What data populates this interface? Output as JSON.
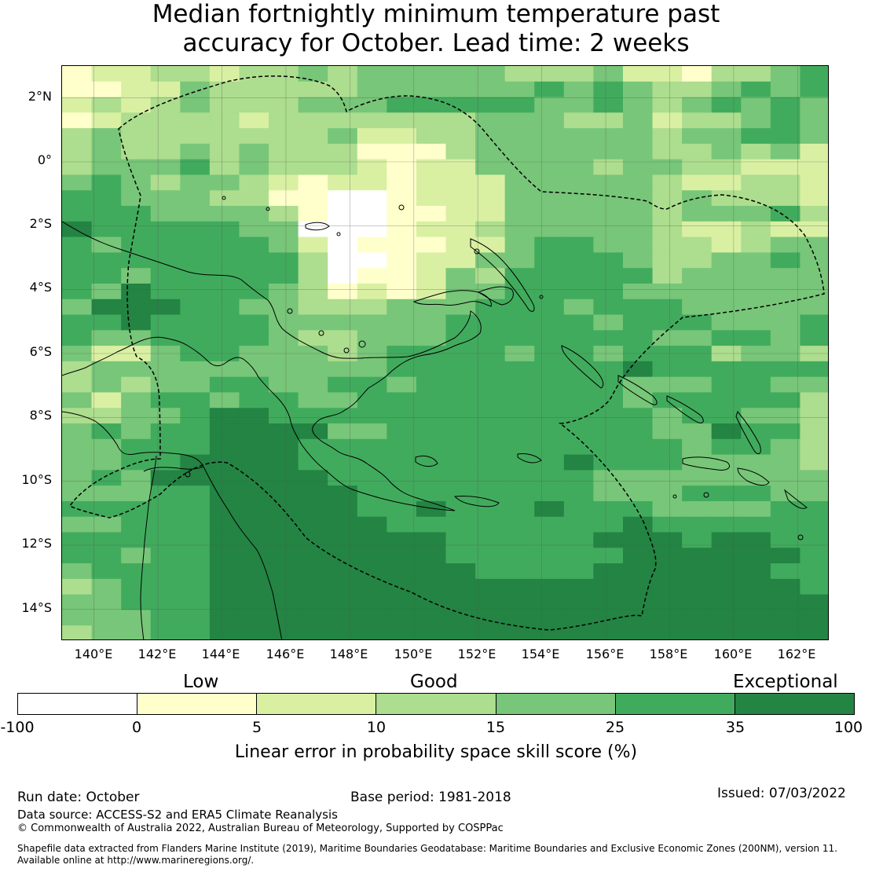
{
  "title": {
    "line1": "Median fortnightly minimum temperature past",
    "line2": "accuracy for October. Lead time: 2 weeks"
  },
  "map": {
    "lat_labels": [
      "2°N",
      "0°",
      "2°S",
      "4°S",
      "6°S",
      "8°S",
      "10°S",
      "12°S",
      "14°S"
    ],
    "lon_labels": [
      "140°E",
      "142°E",
      "144°E",
      "146°E",
      "148°E",
      "150°E",
      "152°E",
      "154°E",
      "156°E",
      "158°E",
      "160°E",
      "162°E"
    ],
    "lat_range": [
      -15,
      3
    ],
    "lon_range": [
      139,
      163
    ],
    "grid": true,
    "eez_boundary": "dashed black",
    "colors": [
      "#ffffff",
      "#ffffcc",
      "#d9f0a3",
      "#addd8e",
      "#78c679",
      "#41ab5d",
      "#238443"
    ],
    "cells": [
      "12233233434444433342213345",
      "11224333334444445454334545",
      "23234333444555554454345454",
      "12333323333333444334233454",
      "34333333342233444444344554",
      "34334343331113444444334342",
      "34445343332122444434433222",
      "45434432122122244444322332",
      "55444331100122244444343332",
      "55544443100112244444344453",
      "65555544000122344444322322",
      "54555554201112245544332344",
      "55555555300122445554334454",
      "55455555301124355555344444",
      "54655554312124455554444444",
      "46665544333444555455544444",
      "55655554444445555545554445",
      "54455554334445555555445545",
      "42245544434555545545553443",
      "34444444444555555556555555",
      "34344554455455555554445544",
      "42455455445555555554555553",
      "33445665555555555555455443",
      "45455666644555555555446553",
      "44555666555555555555545543",
      "44556666555555555655544443",
      "45466666655555555544444444",
      "44455666665555555544455544",
      "55555666665565556555444455",
      "44555666666555555556555555",
      "55555666666665555566656655",
      "55455666666665555556666665",
      "45555666666666555566666655",
      "34555666666666666666666665",
      "44555666666666666666666666",
      "44455666666666666666666666",
      "34455666666666666666666666"
    ]
  },
  "legend": {
    "categories": [
      "Low",
      "Good",
      "Exceptional"
    ],
    "colors": [
      "#ffffff",
      "#ffffcc",
      "#d9f0a3",
      "#addd8e",
      "#78c679",
      "#41ab5d",
      "#238443"
    ],
    "ticks": [
      "-100",
      "0",
      "5",
      "10",
      "15",
      "25",
      "35",
      "100"
    ],
    "title": "Linear error in probability space skill score (%)"
  },
  "footer": {
    "run_date": "Run date: October",
    "base_period": "Base period: 1981-2018",
    "issued": "Issued: 07/03/2022",
    "data_source": "Data source: ACCESS-S2 and ERA5 Climate Reanalysis",
    "copyright": "© Commonwealth of Australia 2022, Australian Bureau of Meteorology, Supported by COSPPac",
    "shapefile_line1": "Shapefile data extracted from Flanders Marine Institute (2019), Maritime Boundaries Geodatabase: Maritime Boundaries and Exclusive Economic Zones (200NM), version 11.",
    "shapefile_line2": "Available online at http://www.marineregions.org/."
  }
}
